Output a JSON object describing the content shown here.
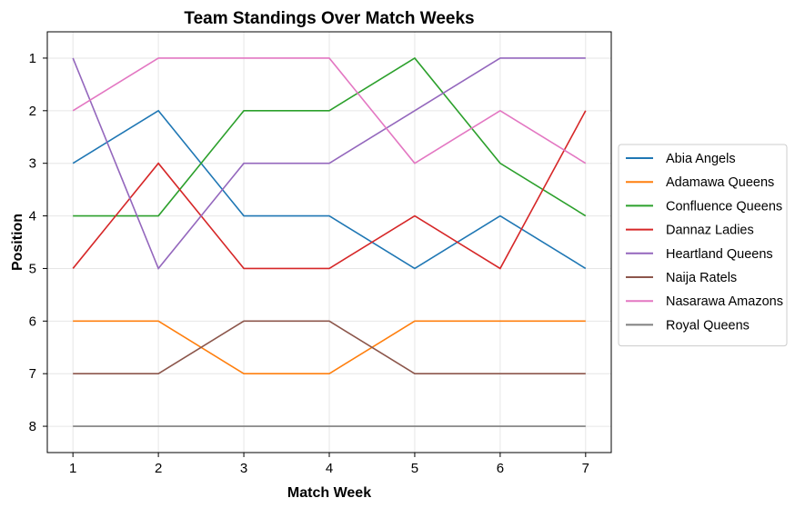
{
  "chart_data": {
    "type": "line",
    "title": "Team Standings Over Match Weeks",
    "xlabel": "Match Week",
    "ylabel": "Position",
    "x": [
      1,
      2,
      3,
      4,
      5,
      6,
      7
    ],
    "x_tick_labels": [
      "1",
      "2",
      "3",
      "4",
      "5",
      "6",
      "7"
    ],
    "y_tick_labels": [
      "1",
      "2",
      "3",
      "4",
      "5",
      "6",
      "7",
      "8"
    ],
    "y_ticks": [
      1,
      2,
      3,
      4,
      5,
      6,
      7,
      8
    ],
    "xlim": [
      0.7,
      7.3
    ],
    "ylim": [
      8.5,
      0.5
    ],
    "y_inverted": true,
    "grid": true,
    "legend_position": "outside-right",
    "series": [
      {
        "name": "Abia Angels",
        "color": "#1f77b4",
        "values": [
          3,
          2,
          4,
          4,
          5,
          4,
          5
        ]
      },
      {
        "name": "Adamawa Queens",
        "color": "#ff7f0e",
        "values": [
          6,
          6,
          7,
          7,
          6,
          6,
          6
        ]
      },
      {
        "name": "Confluence Queens",
        "color": "#2ca02c",
        "values": [
          4,
          4,
          2,
          2,
          1,
          3,
          4
        ]
      },
      {
        "name": "Dannaz Ladies",
        "color": "#d62728",
        "values": [
          5,
          3,
          5,
          5,
          4,
          5,
          2
        ]
      },
      {
        "name": "Heartland Queens",
        "color": "#9467bd",
        "values": [
          1,
          5,
          3,
          3,
          2,
          1,
          1
        ]
      },
      {
        "name": "Naija Ratels",
        "color": "#8c564b",
        "values": [
          7,
          7,
          6,
          6,
          7,
          7,
          7
        ]
      },
      {
        "name": "Nasarawa Amazons",
        "color": "#e377c2",
        "values": [
          2,
          1,
          1,
          1,
          3,
          2,
          3
        ]
      },
      {
        "name": "Royal Queens",
        "color": "#7f7f7f",
        "values": [
          8,
          8,
          8,
          8,
          8,
          8,
          8
        ]
      }
    ]
  }
}
